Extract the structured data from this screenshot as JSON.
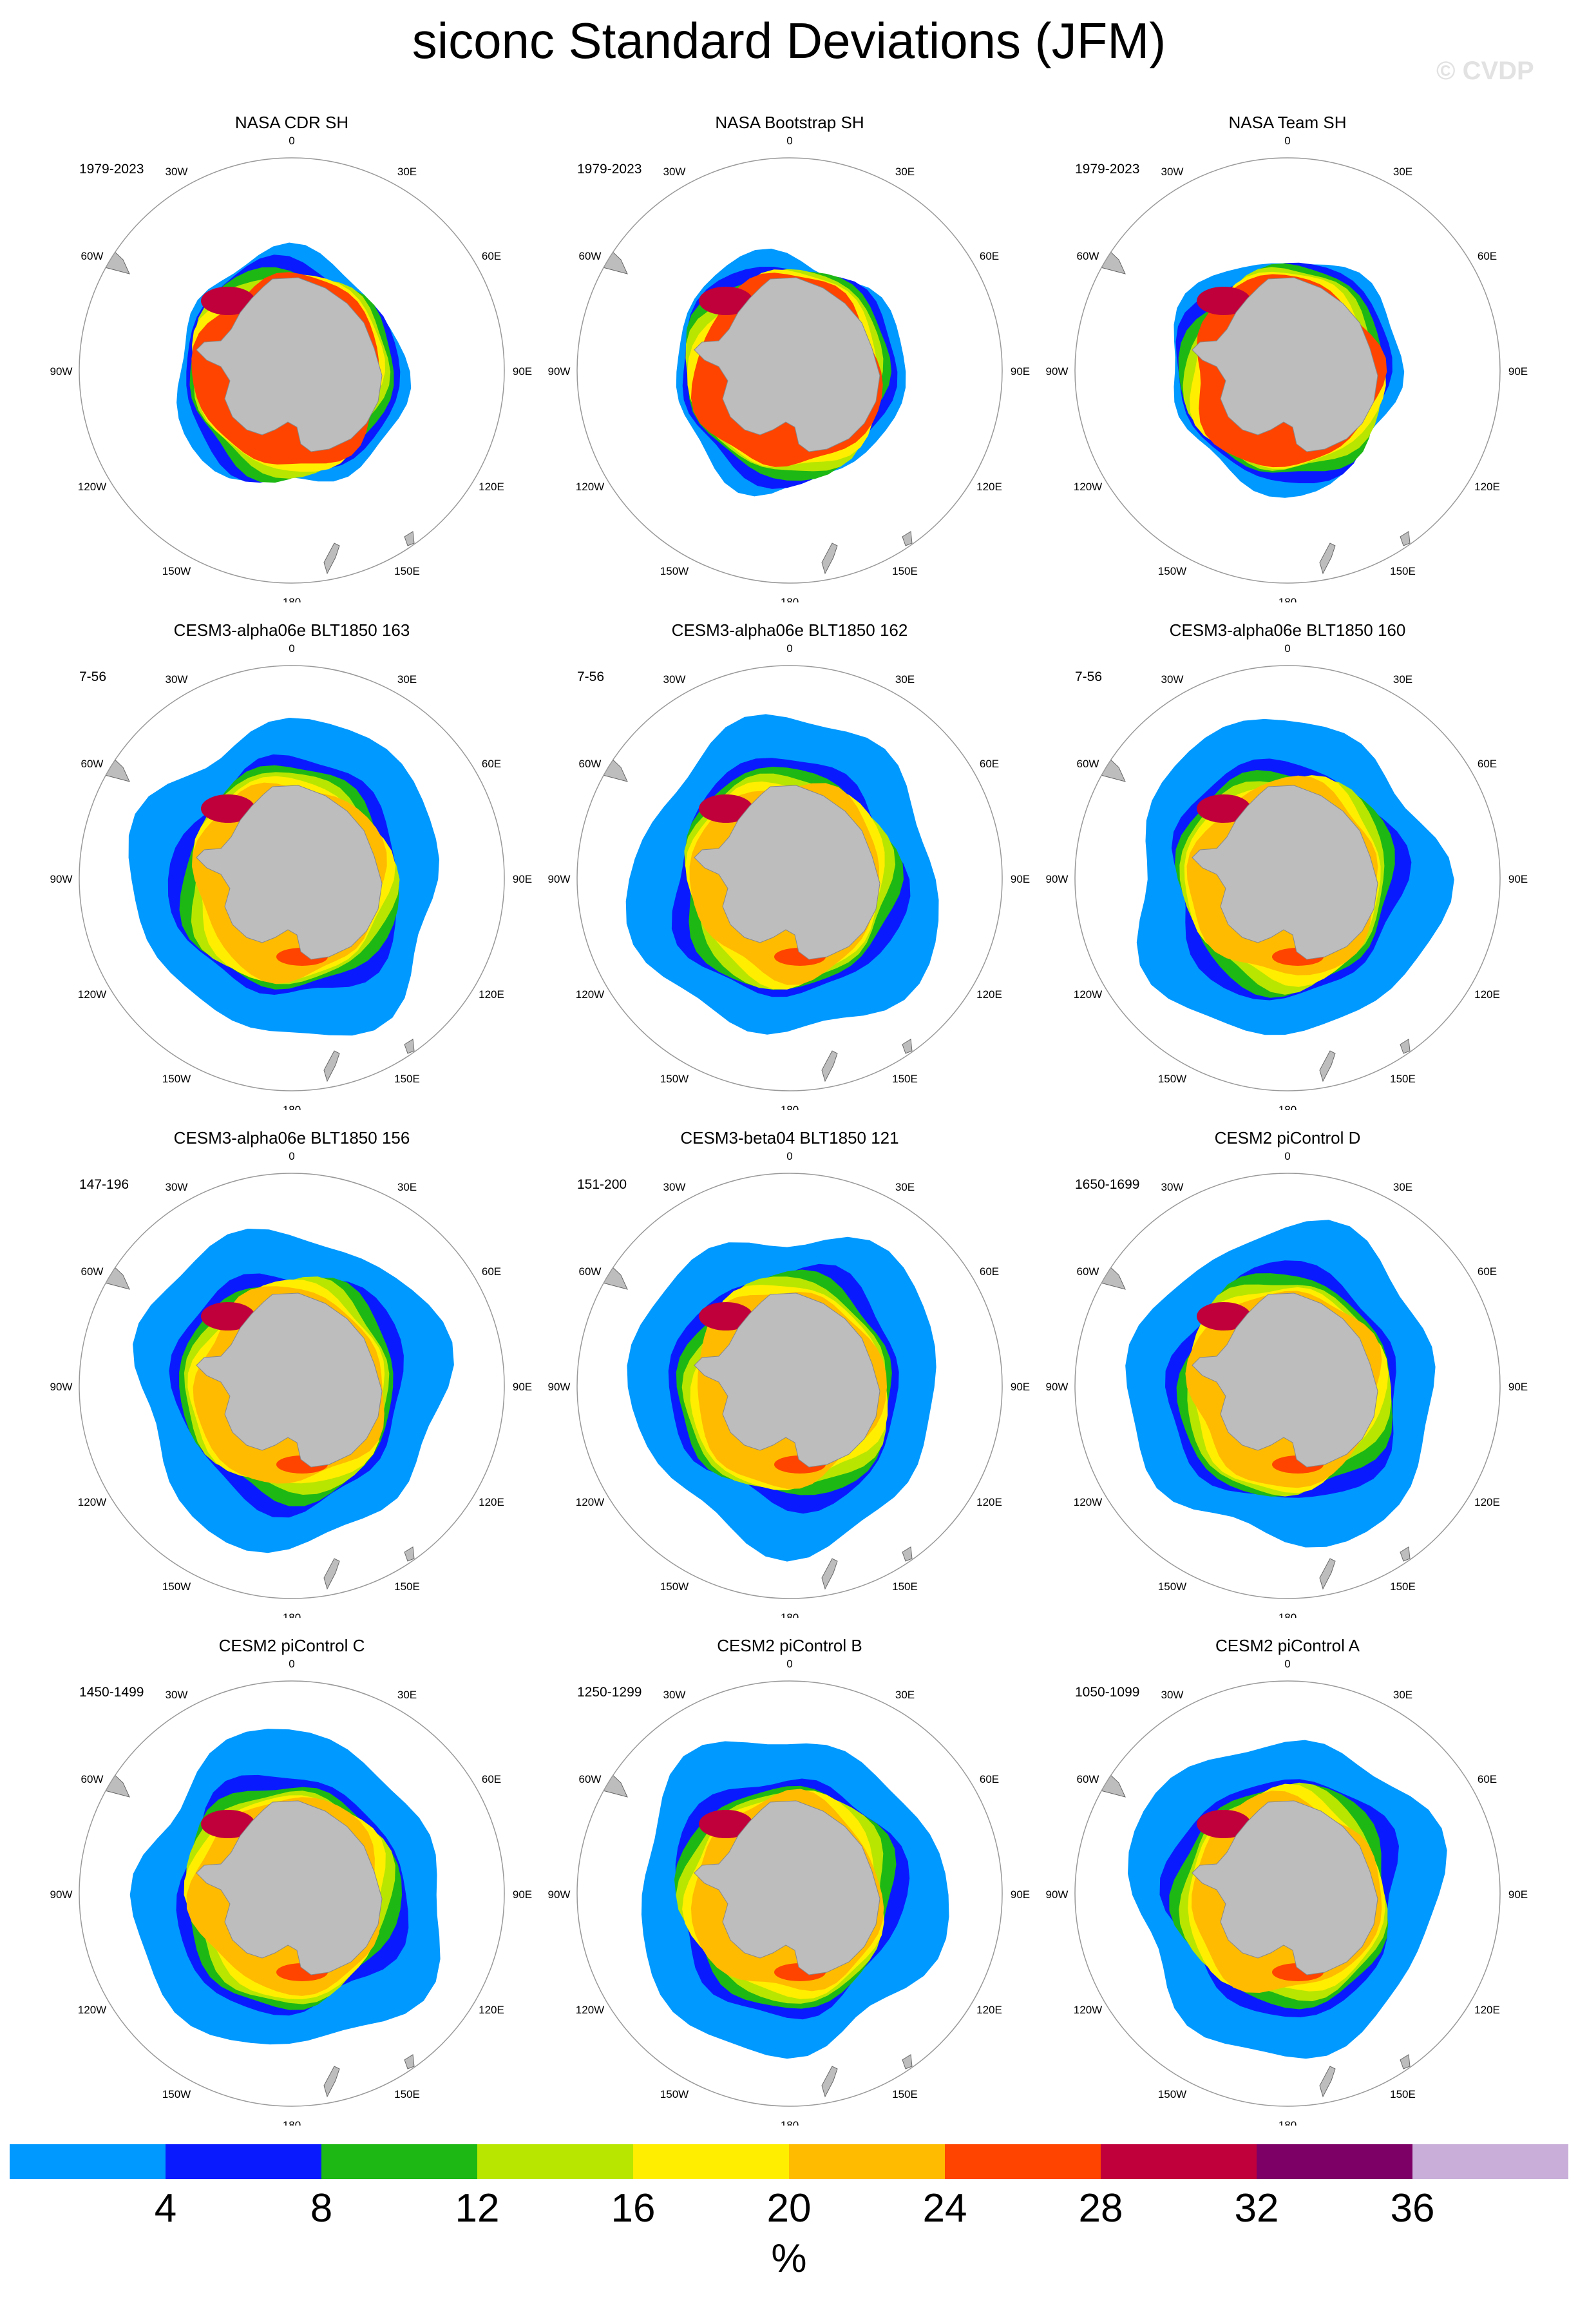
{
  "title": "siconc Standard Deviations (JFM)",
  "watermark": "© CVDP",
  "longitude_labels": {
    "lon0": "0",
    "lon30e": "30E",
    "lon60e": "60E",
    "lon90e": "90E",
    "lon120e": "120E",
    "lon150e": "150E",
    "lon180": "180",
    "lon150w": "150W",
    "lon120w": "120W",
    "lon90w": "90W",
    "lon60w": "60W",
    "lon30w": "30W"
  },
  "panels": [
    {
      "title": "NASA CDR SH",
      "period": "1979-2023"
    },
    {
      "title": "NASA Bootstrap SH",
      "period": "1979-2023"
    },
    {
      "title": "NASA Team SH",
      "period": "1979-2023"
    },
    {
      "title": "CESM3-alpha06e BLT1850 163",
      "period": "7-56"
    },
    {
      "title": "CESM3-alpha06e BLT1850 162",
      "period": "7-56"
    },
    {
      "title": "CESM3-alpha06e BLT1850 160",
      "period": "7-56"
    },
    {
      "title": "CESM3-alpha06e BLT1850 156",
      "period": "147-196"
    },
    {
      "title": "CESM3-beta04 BLT1850 121",
      "period": "151-200"
    },
    {
      "title": "CESM2 piControl D",
      "period": "1650-1699"
    },
    {
      "title": "CESM2 piControl C",
      "period": "1450-1499"
    },
    {
      "title": "CESM2 piControl B",
      "period": "1250-1299"
    },
    {
      "title": "CESM2 piControl A",
      "period": "1050-1099"
    }
  ],
  "colorbar": {
    "colors": [
      "#0099ff",
      "#0a1aff",
      "#1eb814",
      "#b8e600",
      "#ffee00",
      "#ffbb00",
      "#ff4400",
      "#c0003a",
      "#7d0066",
      "#c8aed8"
    ],
    "labels": [
      "4",
      "8",
      "12",
      "16",
      "20",
      "24",
      "28",
      "32",
      "36"
    ],
    "unit": "%"
  },
  "land_color": "#bdbdbd"
}
